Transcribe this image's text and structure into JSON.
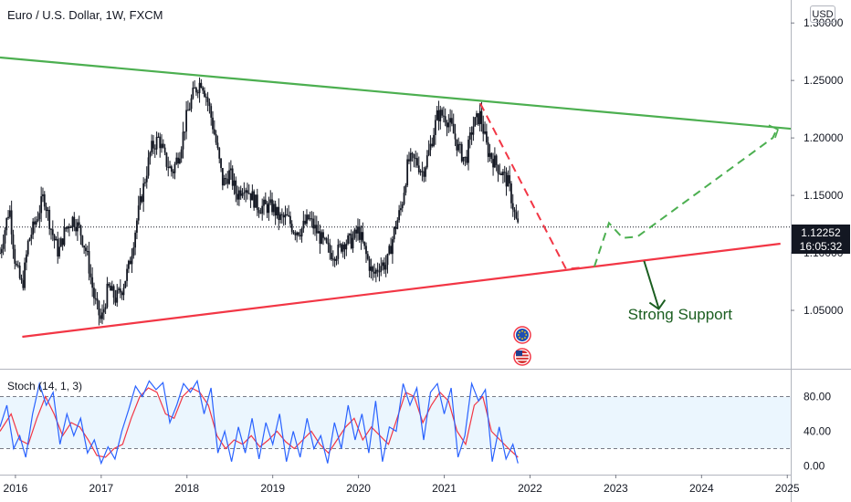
{
  "header": {
    "title": "Euro / U.S. Dollar, 1W, FXCM",
    "currency": "USD"
  },
  "stoch": {
    "label": "Stoch (14, 1, 3)",
    "ticks": [
      {
        "v": 80,
        "label": "80.00"
      },
      {
        "v": 40,
        "label": "40.00"
      },
      {
        "v": 0,
        "label": "0.00"
      }
    ],
    "band": [
      20,
      80
    ],
    "k_color": "#2962ff",
    "d_color": "#f23645"
  },
  "colors": {
    "resistance": "#4caf50",
    "support": "#f23645",
    "bull_projection": "#4caf50",
    "bear_projection": "#f23645",
    "candles": "#131722",
    "annotation": "#1b5e20"
  },
  "annotation": {
    "text": "Strong Support"
  },
  "price_tag": {
    "price": "1.12252",
    "countdown": "16:05:32"
  },
  "icons": [
    "eu-flag-icon",
    "us-flag-icon"
  ],
  "chart_data": {
    "type": "candlestick",
    "timeframe": "1W",
    "xlim": [
      2015.82,
      2025.04
    ],
    "ylim": [
      1.0,
      1.32
    ],
    "x_ticks": [
      "2016",
      "2017",
      "2018",
      "2019",
      "2020",
      "2021",
      "2022",
      "2023",
      "2024",
      "2025"
    ],
    "y_ticks": [
      {
        "v": 1.3,
        "label": "1.30000"
      },
      {
        "v": 1.25,
        "label": "1.25000"
      },
      {
        "v": 1.2,
        "label": "1.20000"
      },
      {
        "v": 1.15,
        "label": "1.15000"
      },
      {
        "v": 1.1,
        "label": "1.10000"
      },
      {
        "v": 1.05,
        "label": "1.05000"
      }
    ],
    "last_price": 1.12252,
    "price_path": [
      [
        2015.82,
        1.1
      ],
      [
        2015.93,
        1.14
      ],
      [
        2016.0,
        1.09
      ],
      [
        2016.08,
        1.07
      ],
      [
        2016.15,
        1.11
      ],
      [
        2016.25,
        1.13
      ],
      [
        2016.33,
        1.15
      ],
      [
        2016.42,
        1.12
      ],
      [
        2016.5,
        1.1
      ],
      [
        2016.58,
        1.12
      ],
      [
        2016.67,
        1.13
      ],
      [
        2016.75,
        1.12
      ],
      [
        2016.83,
        1.1
      ],
      [
        2016.92,
        1.06
      ],
      [
        2017.0,
        1.04
      ],
      [
        2017.08,
        1.07
      ],
      [
        2017.17,
        1.06
      ],
      [
        2017.25,
        1.07
      ],
      [
        2017.33,
        1.09
      ],
      [
        2017.42,
        1.13
      ],
      [
        2017.5,
        1.16
      ],
      [
        2017.58,
        1.19
      ],
      [
        2017.67,
        1.2
      ],
      [
        2017.75,
        1.18
      ],
      [
        2017.83,
        1.17
      ],
      [
        2017.92,
        1.19
      ],
      [
        2018.0,
        1.22
      ],
      [
        2018.08,
        1.24
      ],
      [
        2018.17,
        1.25
      ],
      [
        2018.25,
        1.23
      ],
      [
        2018.33,
        1.2
      ],
      [
        2018.42,
        1.16
      ],
      [
        2018.5,
        1.17
      ],
      [
        2018.58,
        1.15
      ],
      [
        2018.67,
        1.16
      ],
      [
        2018.75,
        1.15
      ],
      [
        2018.83,
        1.14
      ],
      [
        2018.92,
        1.14
      ],
      [
        2019.0,
        1.14
      ],
      [
        2019.08,
        1.13
      ],
      [
        2019.17,
        1.13
      ],
      [
        2019.25,
        1.12
      ],
      [
        2019.33,
        1.12
      ],
      [
        2019.42,
        1.13
      ],
      [
        2019.5,
        1.12
      ],
      [
        2019.58,
        1.11
      ],
      [
        2019.67,
        1.1
      ],
      [
        2019.75,
        1.1
      ],
      [
        2019.83,
        1.11
      ],
      [
        2019.92,
        1.11
      ],
      [
        2020.0,
        1.12
      ],
      [
        2020.08,
        1.1
      ],
      [
        2020.17,
        1.08
      ],
      [
        2020.25,
        1.09
      ],
      [
        2020.33,
        1.09
      ],
      [
        2020.42,
        1.12
      ],
      [
        2020.5,
        1.14
      ],
      [
        2020.58,
        1.18
      ],
      [
        2020.67,
        1.18
      ],
      [
        2020.75,
        1.17
      ],
      [
        2020.83,
        1.19
      ],
      [
        2020.92,
        1.22
      ],
      [
        2021.0,
        1.22
      ],
      [
        2021.08,
        1.21
      ],
      [
        2021.17,
        1.19
      ],
      [
        2021.25,
        1.18
      ],
      [
        2021.33,
        1.21
      ],
      [
        2021.42,
        1.22
      ],
      [
        2021.5,
        1.19
      ],
      [
        2021.58,
        1.18
      ],
      [
        2021.67,
        1.17
      ],
      [
        2021.75,
        1.16
      ],
      [
        2021.83,
        1.13
      ],
      [
        2021.86,
        1.12252
      ]
    ],
    "trendlines": [
      {
        "name": "resistance",
        "from": [
          2015.82,
          1.27
        ],
        "to": [
          2025.04,
          1.208
        ]
      },
      {
        "name": "support",
        "from": [
          2016.08,
          1.027
        ],
        "to": [
          2024.92,
          1.108
        ]
      }
    ],
    "projections": [
      {
        "name": "bear",
        "points": [
          [
            2021.42,
            1.23
          ],
          [
            2022.42,
            1.086
          ],
          [
            2022.58,
            1.087
          ]
        ]
      },
      {
        "name": "bull",
        "points": [
          [
            2022.75,
            1.088
          ],
          [
            2022.92,
            1.126
          ],
          [
            2023.08,
            1.113
          ],
          [
            2023.25,
            1.114
          ],
          [
            2024.83,
            1.2
          ],
          [
            2024.88,
            1.208
          ]
        ]
      }
    ],
    "annotations": [
      {
        "text": "Strong Support",
        "at": [
          2023.75,
          1.047
        ],
        "arrow_from": [
          2023.33,
          1.093
        ],
        "arrow_to": [
          2023.5,
          1.052
        ]
      }
    ],
    "stochastic": {
      "ylim": [
        -10,
        110
      ],
      "d_points": [
        [
          2015.82,
          40
        ],
        [
          2015.95,
          60
        ],
        [
          2016.05,
          30
        ],
        [
          2016.15,
          25
        ],
        [
          2016.25,
          55
        ],
        [
          2016.35,
          80
        ],
        [
          2016.45,
          60
        ],
        [
          2016.55,
          35
        ],
        [
          2016.65,
          50
        ],
        [
          2016.75,
          45
        ],
        [
          2016.85,
          30
        ],
        [
          2016.95,
          12
        ],
        [
          2017.05,
          10
        ],
        [
          2017.15,
          20
        ],
        [
          2017.25,
          25
        ],
        [
          2017.35,
          55
        ],
        [
          2017.45,
          80
        ],
        [
          2017.55,
          90
        ],
        [
          2017.65,
          85
        ],
        [
          2017.75,
          60
        ],
        [
          2017.85,
          55
        ],
        [
          2017.95,
          80
        ],
        [
          2018.05,
          90
        ],
        [
          2018.15,
          85
        ],
        [
          2018.25,
          70
        ],
        [
          2018.35,
          35
        ],
        [
          2018.45,
          20
        ],
        [
          2018.55,
          30
        ],
        [
          2018.65,
          25
        ],
        [
          2018.75,
          35
        ],
        [
          2018.85,
          22
        ],
        [
          2018.95,
          30
        ],
        [
          2019.05,
          40
        ],
        [
          2019.15,
          28
        ],
        [
          2019.25,
          20
        ],
        [
          2019.35,
          30
        ],
        [
          2019.45,
          40
        ],
        [
          2019.55,
          25
        ],
        [
          2019.65,
          15
        ],
        [
          2019.75,
          30
        ],
        [
          2019.85,
          45
        ],
        [
          2019.95,
          55
        ],
        [
          2020.05,
          30
        ],
        [
          2020.15,
          45
        ],
        [
          2020.25,
          35
        ],
        [
          2020.35,
          25
        ],
        [
          2020.45,
          55
        ],
        [
          2020.55,
          85
        ],
        [
          2020.65,
          80
        ],
        [
          2020.75,
          50
        ],
        [
          2020.85,
          70
        ],
        [
          2020.95,
          85
        ],
        [
          2021.05,
          75
        ],
        [
          2021.15,
          40
        ],
        [
          2021.25,
          25
        ],
        [
          2021.35,
          70
        ],
        [
          2021.45,
          80
        ],
        [
          2021.55,
          40
        ],
        [
          2021.65,
          30
        ],
        [
          2021.75,
          20
        ],
        [
          2021.86,
          10
        ]
      ],
      "k_points": [
        [
          2015.82,
          45
        ],
        [
          2015.9,
          70
        ],
        [
          2015.98,
          20
        ],
        [
          2016.05,
          35
        ],
        [
          2016.12,
          10
        ],
        [
          2016.2,
          60
        ],
        [
          2016.28,
          95
        ],
        [
          2016.36,
          70
        ],
        [
          2016.44,
          85
        ],
        [
          2016.52,
          25
        ],
        [
          2016.6,
          60
        ],
        [
          2016.68,
          35
        ],
        [
          2016.76,
          55
        ],
        [
          2016.84,
          15
        ],
        [
          2016.92,
          30
        ],
        [
          2017.0,
          3
        ],
        [
          2017.08,
          22
        ],
        [
          2017.16,
          8
        ],
        [
          2017.24,
          40
        ],
        [
          2017.32,
          65
        ],
        [
          2017.4,
          92
        ],
        [
          2017.48,
          80
        ],
        [
          2017.56,
          98
        ],
        [
          2017.64,
          88
        ],
        [
          2017.72,
          96
        ],
        [
          2017.8,
          50
        ],
        [
          2017.88,
          70
        ],
        [
          2017.96,
          95
        ],
        [
          2018.04,
          85
        ],
        [
          2018.12,
          98
        ],
        [
          2018.2,
          60
        ],
        [
          2018.28,
          90
        ],
        [
          2018.36,
          15
        ],
        [
          2018.44,
          40
        ],
        [
          2018.52,
          5
        ],
        [
          2018.6,
          45
        ],
        [
          2018.68,
          15
        ],
        [
          2018.76,
          55
        ],
        [
          2018.84,
          8
        ],
        [
          2018.92,
          50
        ],
        [
          2019.0,
          25
        ],
        [
          2019.08,
          60
        ],
        [
          2019.16,
          5
        ],
        [
          2019.24,
          40
        ],
        [
          2019.32,
          10
        ],
        [
          2019.4,
          55
        ],
        [
          2019.48,
          20
        ],
        [
          2019.56,
          35
        ],
        [
          2019.64,
          3
        ],
        [
          2019.72,
          50
        ],
        [
          2019.8,
          20
        ],
        [
          2019.88,
          70
        ],
        [
          2019.96,
          30
        ],
        [
          2020.04,
          60
        ],
        [
          2020.12,
          15
        ],
        [
          2020.2,
          75
        ],
        [
          2020.28,
          5
        ],
        [
          2020.36,
          45
        ],
        [
          2020.44,
          40
        ],
        [
          2020.52,
          95
        ],
        [
          2020.6,
          70
        ],
        [
          2020.68,
          90
        ],
        [
          2020.76,
          30
        ],
        [
          2020.84,
          85
        ],
        [
          2020.92,
          95
        ],
        [
          2021.0,
          60
        ],
        [
          2021.08,
          90
        ],
        [
          2021.16,
          10
        ],
        [
          2021.24,
          35
        ],
        [
          2021.32,
          95
        ],
        [
          2021.4,
          75
        ],
        [
          2021.48,
          88
        ],
        [
          2021.56,
          5
        ],
        [
          2021.64,
          45
        ],
        [
          2021.72,
          8
        ],
        [
          2021.8,
          25
        ],
        [
          2021.86,
          3
        ]
      ]
    }
  }
}
